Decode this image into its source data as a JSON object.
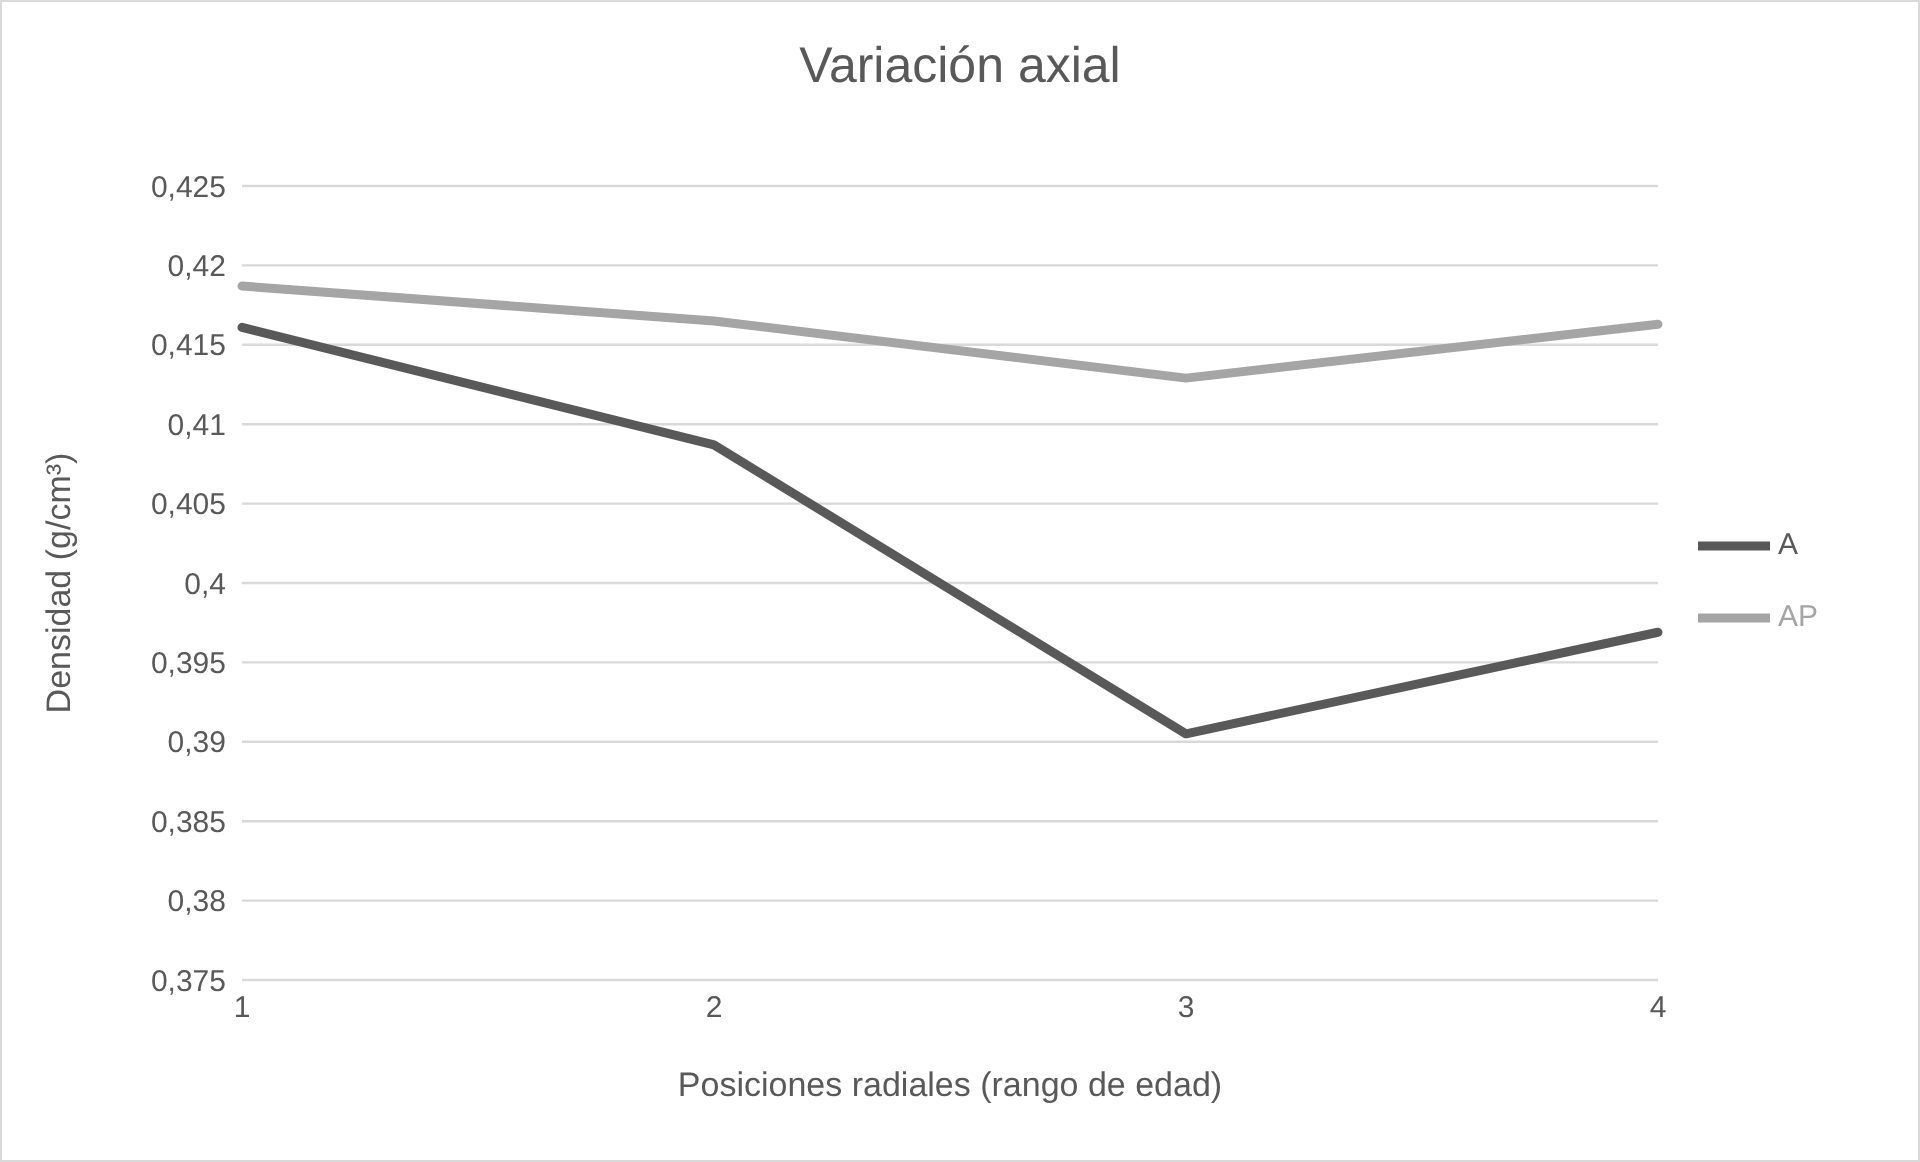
{
  "chart_data": {
    "type": "line",
    "title": "Variación axial",
    "xlabel": "Posiciones radiales (rango de edad)",
    "ylabel": "Densidad (g/cm³)",
    "categories": [
      "1",
      "2",
      "3",
      "4"
    ],
    "series": [
      {
        "name": "A",
        "color": "#595959",
        "values": [
          0.4161,
          0.4087,
          0.3905,
          0.3969
        ]
      },
      {
        "name": "AP",
        "color": "#a5a5a5",
        "values": [
          0.4187,
          0.4165,
          0.4129,
          0.4163
        ]
      }
    ],
    "ylim": [
      0.375,
      0.425
    ],
    "yticks": [
      {
        "value": 0.375,
        "label": "0,375"
      },
      {
        "value": 0.38,
        "label": "0,38"
      },
      {
        "value": 0.385,
        "label": "0,385"
      },
      {
        "value": 0.39,
        "label": "0,39"
      },
      {
        "value": 0.395,
        "label": "0,395"
      },
      {
        "value": 0.4,
        "label": "0,4"
      },
      {
        "value": 0.405,
        "label": "0,405"
      },
      {
        "value": 0.41,
        "label": "0,41"
      },
      {
        "value": 0.415,
        "label": "0,415"
      },
      {
        "value": 0.42,
        "label": "0,42"
      },
      {
        "value": 0.425,
        "label": "0,425"
      }
    ],
    "grid": "y",
    "legend": "right",
    "marker": "none",
    "line_style": "solid"
  }
}
